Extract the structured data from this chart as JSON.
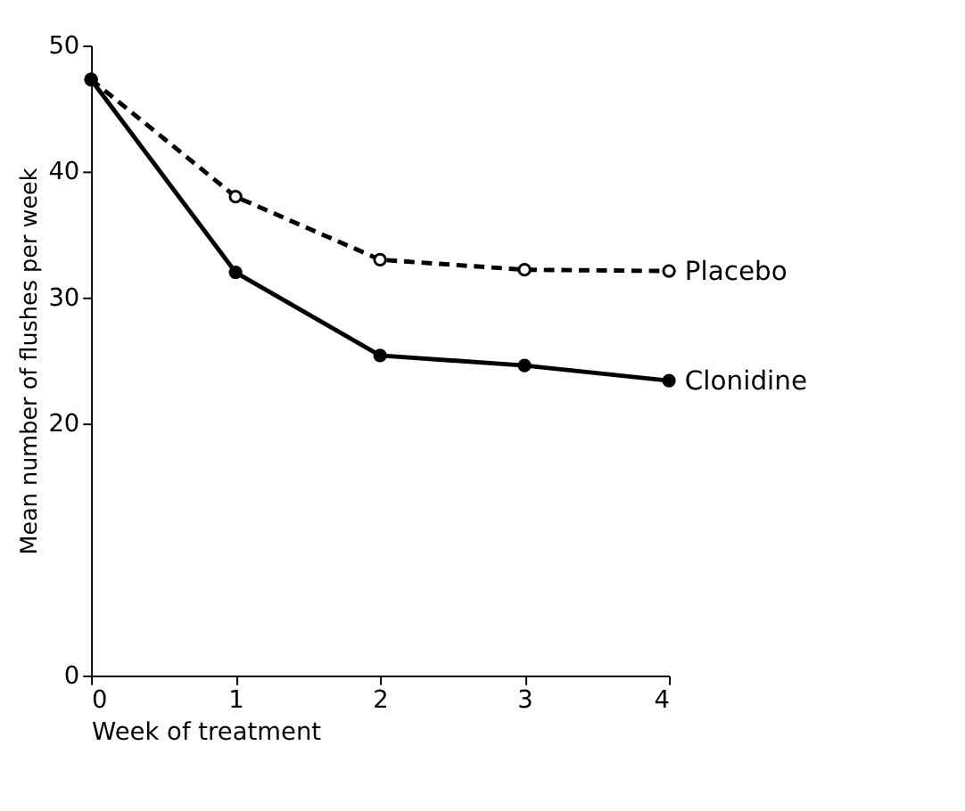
{
  "chart_data": {
    "type": "line",
    "xlabel": "Week of treatment",
    "ylabel": "Mean number of flushes per week",
    "x": [
      0,
      1,
      2,
      3,
      4
    ],
    "series": [
      {
        "name": "Placebo",
        "color": "#000000",
        "line_style": "dashed",
        "marker": "circle",
        "values": [
          47.3,
          38.0,
          33.0,
          32.2,
          32.1
        ]
      },
      {
        "name": "Clonidine",
        "color": "#000000",
        "line_style": "solid",
        "marker": "circle",
        "values": [
          47.3,
          32.0,
          25.4,
          24.6,
          23.4
        ]
      }
    ],
    "xlim": [
      0,
      4
    ],
    "xticks": [
      0,
      1,
      2,
      3,
      4
    ],
    "ylim": [
      0,
      50
    ],
    "yticks": [
      0,
      20,
      30,
      40,
      50
    ],
    "grid": false
  }
}
